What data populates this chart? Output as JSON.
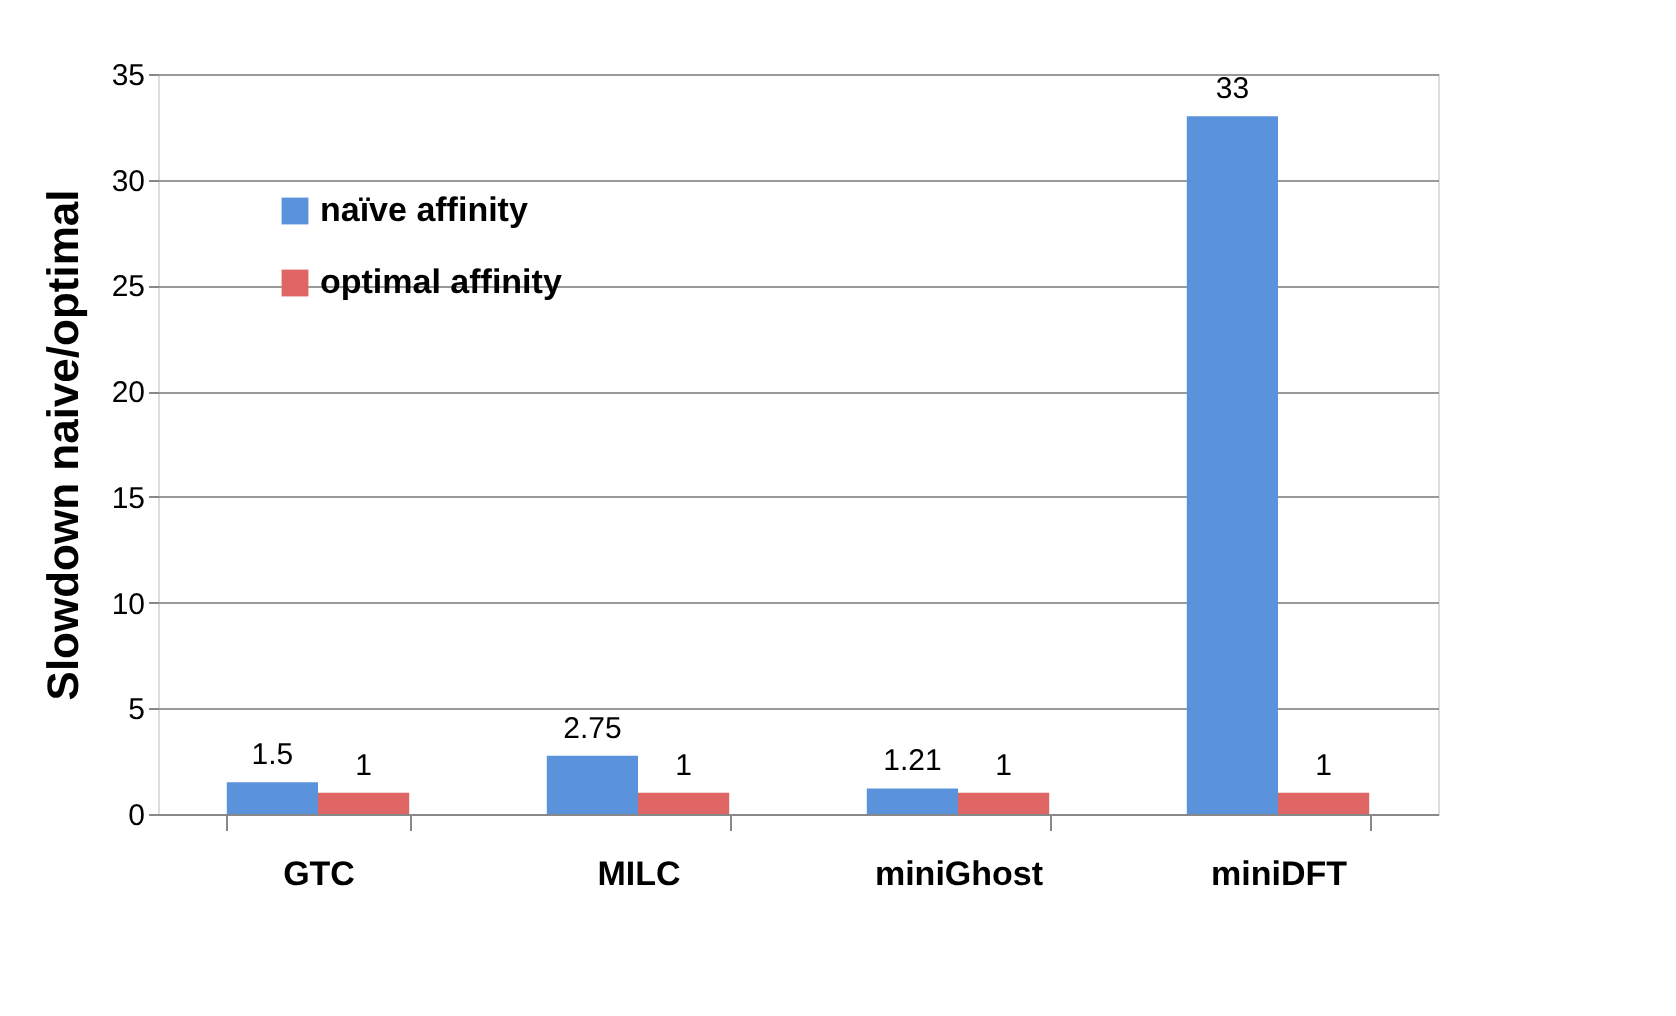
{
  "chart_data": {
    "type": "bar",
    "ylabel": "Slowdown naive/optimal",
    "categories": [
      "GTC",
      "MILC",
      "miniGhost",
      "miniDFT"
    ],
    "series": [
      {
        "name": "naïve affinity",
        "color": "#5b92dc",
        "values": [
          1.5,
          2.75,
          1.21,
          33
        ]
      },
      {
        "name": "optimal affinity",
        "color": "#e06666",
        "values": [
          1,
          1,
          1,
          1
        ]
      }
    ],
    "ylim": [
      0,
      35
    ],
    "yticks": [
      0,
      5,
      10,
      15,
      20,
      25,
      30,
      35
    ],
    "grid": "y",
    "legend": "top left",
    "data_labels": true
  }
}
